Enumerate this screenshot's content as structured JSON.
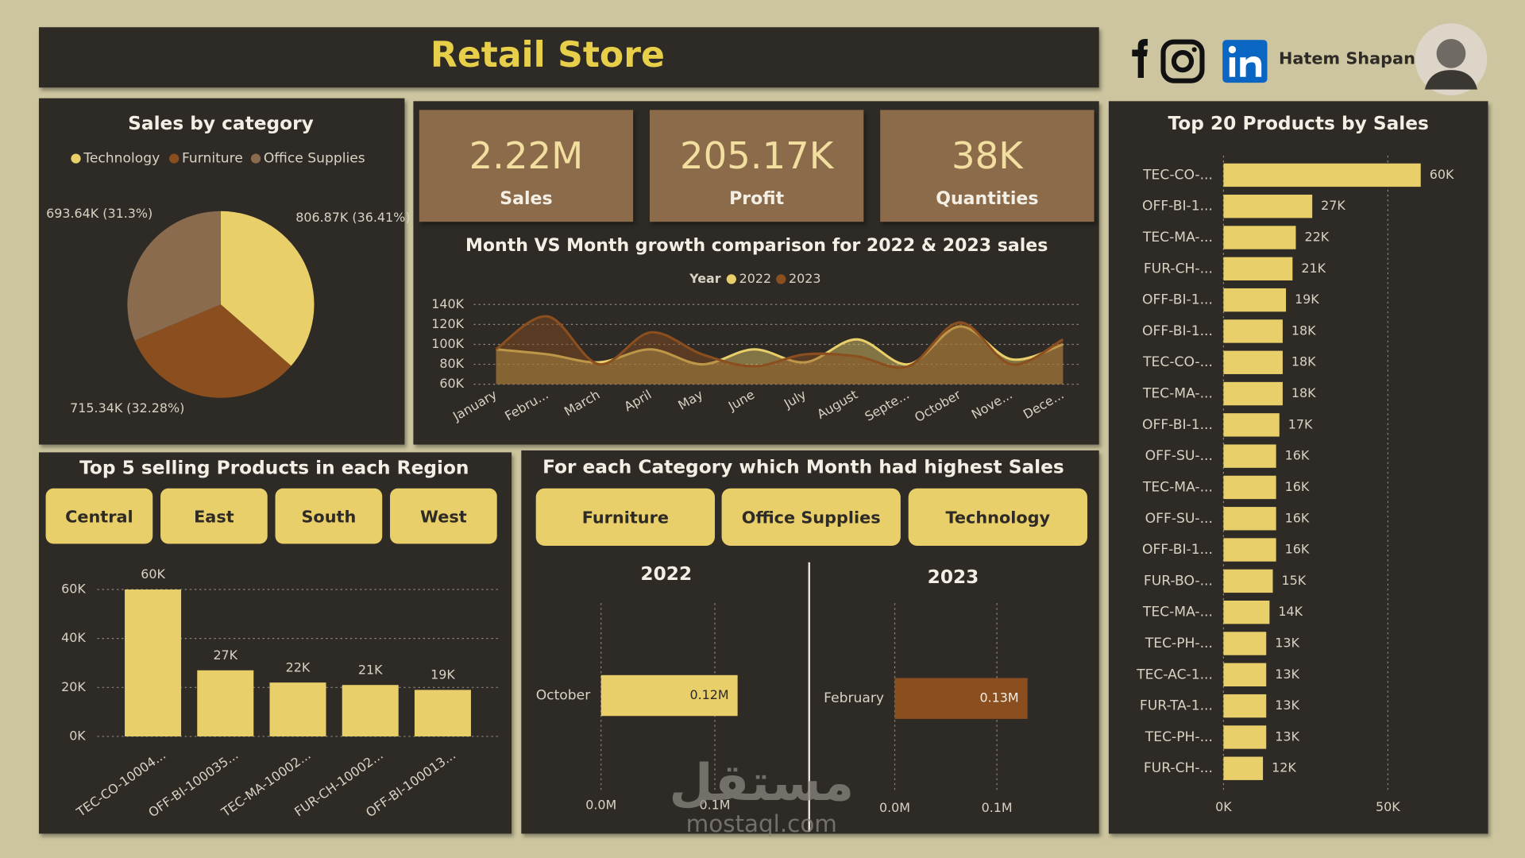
{
  "header": {
    "title": "Retail Store",
    "author": "Hatem Shapan"
  },
  "kpis": [
    {
      "value": "2.22M",
      "label": "Sales"
    },
    {
      "value": "205.17K",
      "label": "Profit"
    },
    {
      "value": "38K",
      "label": "Quantities"
    }
  ],
  "region_panel": {
    "title": "Top 5 selling Products in each Region",
    "buttons": [
      "Central",
      "East",
      "South",
      "West"
    ]
  },
  "category_panel": {
    "title": "For each Category which Month had highest Sales",
    "buttons": [
      "Furniture",
      "Office Supplies",
      "Technology"
    ]
  },
  "watermark": {
    "logo": "مستقل",
    "site": "mostaql.com"
  },
  "chart_data": [
    {
      "type": "pie",
      "title": "Sales by category",
      "categories": [
        "Technology",
        "Furniture",
        "Office Supplies"
      ],
      "values": [
        806870,
        715340,
        693640
      ],
      "value_labels": [
        "806.87K (36.41%)",
        "715.34K (32.28%)",
        "693.64K (31.3%)"
      ],
      "colors": [
        "#e8cf6a",
        "#8b4f1f",
        "#8b6b4e"
      ]
    },
    {
      "type": "area",
      "title": "Month VS Month growth comparison for 2022 & 2023 sales",
      "legend_title": "Year",
      "categories": [
        "January",
        "Febru...",
        "March",
        "April",
        "May",
        "June",
        "July",
        "August",
        "Septe...",
        "October",
        "Nove...",
        "Dece..."
      ],
      "series": [
        {
          "name": "2022",
          "color": "#e8cf6a",
          "values": [
            95000,
            90000,
            82000,
            95000,
            80000,
            95000,
            82000,
            105000,
            80000,
            118000,
            85000,
            100000
          ]
        },
        {
          "name": "2023",
          "color": "#8b4f1f",
          "values": [
            95000,
            128000,
            80000,
            112000,
            90000,
            78000,
            90000,
            88000,
            78000,
            122000,
            80000,
            105000
          ]
        }
      ],
      "ylim": [
        60000,
        140000
      ],
      "yticks": [
        {
          "value": 60000,
          "label": "60K"
        },
        {
          "value": 80000,
          "label": "80K"
        },
        {
          "value": 100000,
          "label": "100K"
        },
        {
          "value": 120000,
          "label": "120K"
        },
        {
          "value": 140000,
          "label": "140K"
        }
      ],
      "grid": true
    },
    {
      "type": "bar",
      "categories": [
        "TEC-CO-10004...",
        "OFF-BI-100035...",
        "TEC-MA-10002...",
        "FUR-CH-10002...",
        "OFF-BI-100013..."
      ],
      "values": [
        60000,
        27000,
        22000,
        21000,
        19000
      ],
      "value_labels": [
        "60K",
        "27K",
        "22K",
        "21K",
        "19K"
      ],
      "color": "#e8cf6a",
      "ylim": [
        0,
        60000
      ],
      "yticks": [
        {
          "value": 0,
          "label": "0K"
        },
        {
          "value": 20000,
          "label": "20K"
        },
        {
          "value": 40000,
          "label": "40K"
        },
        {
          "value": 60000,
          "label": "60K"
        }
      ],
      "grid": true
    },
    {
      "type": "barh",
      "title": "2022",
      "categories": [
        "October"
      ],
      "values": [
        120000
      ],
      "value_labels": [
        "0.12M"
      ],
      "color": "#e8cf6a",
      "xlim": [
        0,
        150000
      ],
      "xticks": [
        {
          "value": 0,
          "label": "0.0M"
        },
        {
          "value": 100000,
          "label": "0.1M"
        }
      ],
      "grid": true
    },
    {
      "type": "barh",
      "title": "2023",
      "categories": [
        "February"
      ],
      "values": [
        130000
      ],
      "value_labels": [
        "0.13M"
      ],
      "color": "#8b4f1f",
      "xlim": [
        0,
        150000
      ],
      "xticks": [
        {
          "value": 0,
          "label": "0.0M"
        },
        {
          "value": 100000,
          "label": "0.1M"
        }
      ],
      "grid": true
    },
    {
      "type": "barh",
      "title": "Top 20 Products by Sales",
      "categories": [
        "TEC-CO-...",
        "OFF-BI-1...",
        "TEC-MA-...",
        "FUR-CH-...",
        "OFF-BI-1...",
        "OFF-BI-1...",
        "TEC-CO-...",
        "TEC-MA-...",
        "OFF-BI-1...",
        "OFF-SU-...",
        "TEC-MA-...",
        "OFF-SU-...",
        "OFF-BI-1...",
        "FUR-BO-...",
        "TEC-MA-...",
        "TEC-PH-...",
        "TEC-AC-1...",
        "FUR-TA-1...",
        "TEC-PH-...",
        "FUR-CH-..."
      ],
      "values": [
        60000,
        27000,
        22000,
        21000,
        19000,
        18000,
        18000,
        18000,
        17000,
        16000,
        16000,
        16000,
        16000,
        15000,
        14000,
        13000,
        13000,
        13000,
        13000,
        12000
      ],
      "value_labels": [
        "60K",
        "27K",
        "22K",
        "21K",
        "19K",
        "18K",
        "18K",
        "18K",
        "17K",
        "16K",
        "16K",
        "16K",
        "16K",
        "15K",
        "14K",
        "13K",
        "13K",
        "13K",
        "13K",
        "12K"
      ],
      "color": "#e8cf6a",
      "xlim": [
        0,
        60000
      ],
      "xticks": [
        {
          "value": 0,
          "label": "0K"
        },
        {
          "value": 50000,
          "label": "50K"
        }
      ],
      "grid": true
    }
  ]
}
